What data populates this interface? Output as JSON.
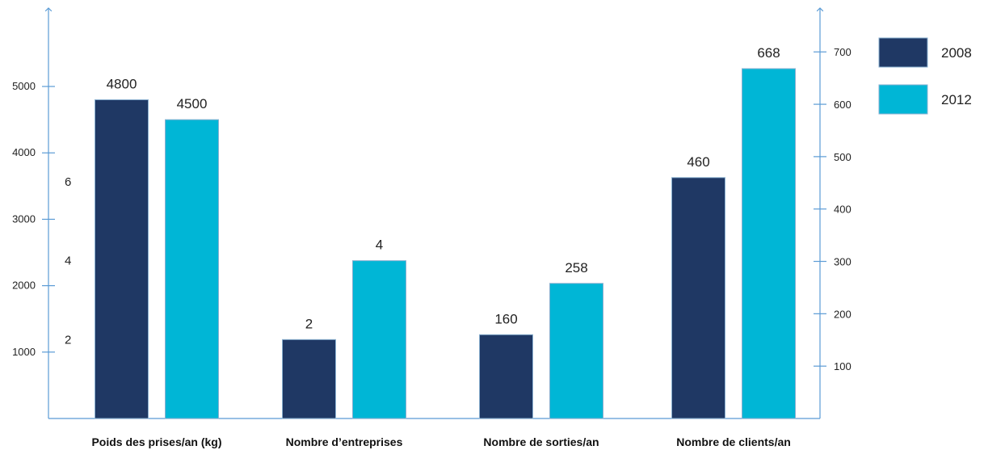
{
  "chart_data": {
    "type": "bar",
    "categories": [
      "Poids des prises/an (kg)",
      "Nombre d’entreprises",
      "Nombre de sorties/an",
      "Nombre de clients/an"
    ],
    "series": [
      {
        "name": "2008",
        "values": [
          4800,
          2,
          160,
          460
        ],
        "color": "#1f3864"
      },
      {
        "name": "2012",
        "values": [
          4500,
          4,
          258,
          668
        ],
        "color": "#00b6d6"
      }
    ],
    "axes": {
      "left_outer": {
        "ticks": [
          1000,
          2000,
          3000,
          4000,
          5000
        ],
        "applies_to": "Poids des prises/an (kg)"
      },
      "left_inner": {
        "ticks": [
          2,
          4,
          6
        ],
        "applies_to": "Nombre d’entreprises"
      },
      "right": {
        "ticks": [
          100,
          200,
          300,
          400,
          500,
          600,
          700
        ],
        "applies_to": "Nombre de sorties/an, Nombre de clients/an"
      }
    },
    "legend_position": "top-right",
    "grid": false
  }
}
